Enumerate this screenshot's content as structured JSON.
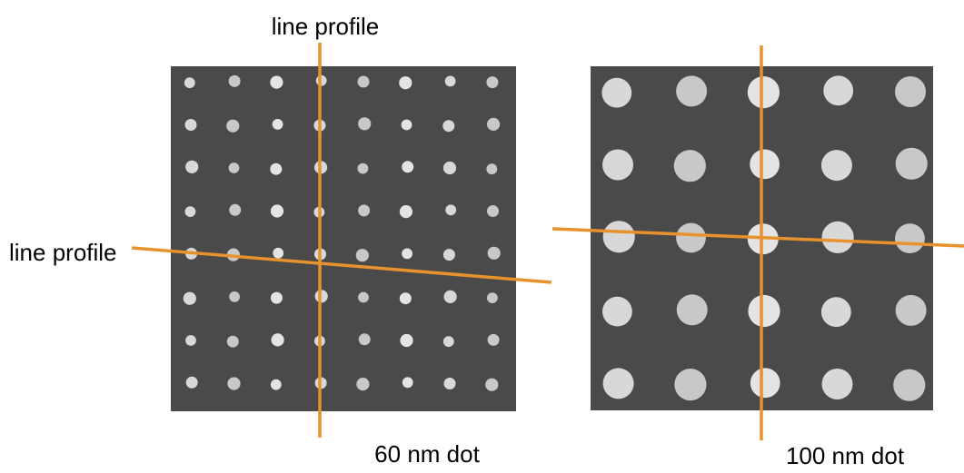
{
  "labels": {
    "top_profile": "line profile",
    "left_profile": "line profile"
  },
  "panels": [
    {
      "caption": "60 nm dot"
    },
    {
      "caption": "100 nm dot"
    }
  ]
}
